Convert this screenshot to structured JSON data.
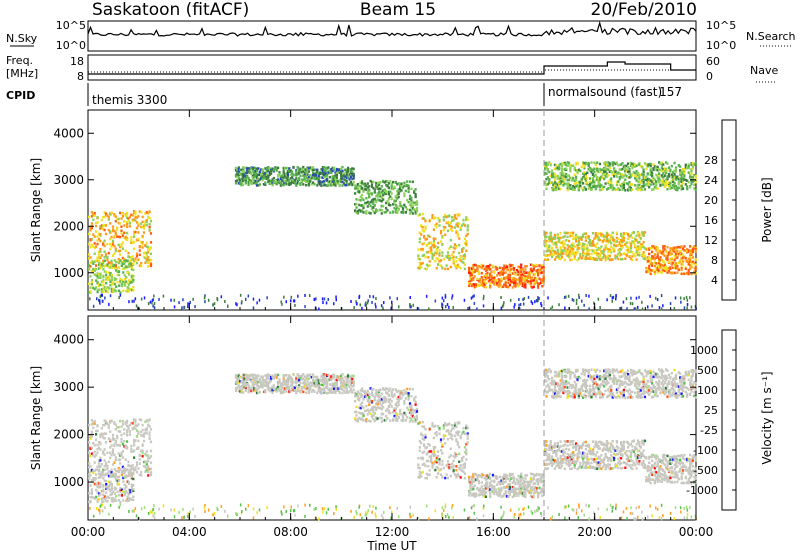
{
  "header": {
    "station": "Saskatoon (fitACF)",
    "beam": "Beam 15",
    "date": "20/Feb/2010"
  },
  "panel_labels": {
    "nsky": "N.Sky",
    "nsearch": "N.Search",
    "freq": "Freq.",
    "freq_unit": "[MHz]",
    "nave": "Nave",
    "cpid": "CPID"
  },
  "cpid_segments": [
    {
      "name": "themis 3300",
      "start_hour": 0
    },
    {
      "name": "normalsound (fast)",
      "id": "157",
      "start_hour": 18.0
    }
  ],
  "noise_axis": {
    "ticks_left": [
      "10^5",
      "10^0"
    ],
    "ticks_right": [
      "10^5",
      "10^0"
    ]
  },
  "freq_axis": {
    "ticks_left": [
      "18",
      "8"
    ],
    "ticks_right": [
      "60",
      "0"
    ]
  },
  "range_axis": {
    "label": "Slant Range [km]",
    "ticks": [
      "1000",
      "2000",
      "3000",
      "4000"
    ],
    "ylim": [
      200,
      4500
    ]
  },
  "time_axis": {
    "label": "Time UT",
    "ticks": [
      "00:00",
      "04:00",
      "08:00",
      "12:00",
      "16:00",
      "20:00",
      "00:00"
    ]
  },
  "power_colorbar": {
    "label": "Power [dB]",
    "ticks": [
      "4",
      "8",
      "12",
      "16",
      "20",
      "24",
      "28"
    ],
    "colors": [
      "#1a1aff",
      "#2847b8",
      "#3c7d3c",
      "#55b04d",
      "#8cd05a",
      "#f0e020",
      "#ff9a1a",
      "#ff5a10",
      "#ff1a10"
    ]
  },
  "velocity_colorbar": {
    "label": "Velocity [m s⁻¹]",
    "ticks": [
      "1000",
      "500",
      "100",
      "25",
      "-25",
      "-100",
      "-500",
      "-1000"
    ],
    "colors": [
      "#1a1aff",
      "#2a7a3a",
      "#55c04a",
      "#9ee07a",
      "#c8c8c0",
      "#f0e020",
      "#ffa020",
      "#ff5010",
      "#ff1010"
    ]
  },
  "chart_data": {
    "type": "heatmap",
    "x_range_hours": [
      0,
      24
    ],
    "mode_change_hour": 18.0,
    "range_km_limits": [
      200,
      4500
    ],
    "echo_bands": [
      {
        "t0": 0.0,
        "t1": 2.5,
        "r0": 1150,
        "r1": 2350,
        "power_db": 24,
        "velocity": -25
      },
      {
        "t0": 0.0,
        "t1": 1.8,
        "r0": 600,
        "r1": 1300,
        "power_db": 18,
        "velocity": -25
      },
      {
        "t0": 5.8,
        "t1": 10.5,
        "r0": 2900,
        "r1": 3300,
        "power_db": 12,
        "velocity": 25
      },
      {
        "t0": 10.5,
        "t1": 13.0,
        "r0": 2300,
        "r1": 3000,
        "power_db": 14,
        "velocity": 25
      },
      {
        "t0": 13.0,
        "t1": 15.0,
        "r0": 1100,
        "r1": 2300,
        "power_db": 22,
        "velocity": -25
      },
      {
        "t0": 15.0,
        "t1": 18.0,
        "r0": 700,
        "r1": 1200,
        "power_db": 28,
        "velocity": -25
      },
      {
        "t0": 18.0,
        "t1": 24.0,
        "r0": 2800,
        "r1": 3400,
        "power_db": 16,
        "velocity": -25
      },
      {
        "t0": 18.0,
        "t1": 22.0,
        "r0": 1300,
        "r1": 1900,
        "power_db": 22,
        "velocity": -25
      },
      {
        "t0": 22.0,
        "t1": 24.0,
        "r0": 1000,
        "r1": 1600,
        "power_db": 26,
        "velocity": -25
      }
    ]
  }
}
